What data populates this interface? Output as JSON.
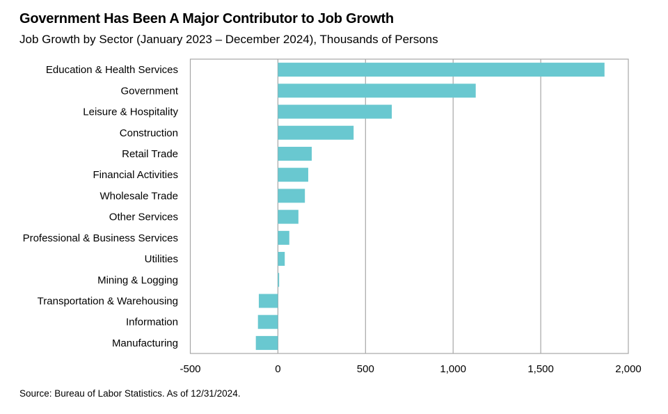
{
  "chart_data": {
    "type": "bar",
    "orientation": "horizontal",
    "title": "Government Has Been A Major Contributor to Job Growth",
    "subtitle": "Job Growth by Sector (January 2023 – December 2024), Thousands of Persons",
    "categories": [
      "Education & Health Services",
      "Government",
      "Leisure & Hospitality",
      "Construction",
      "Retail Trade",
      "Financial Activities",
      "Wholesale Trade",
      "Other Services",
      "Professional & Business Services",
      "Utilities",
      "Mining & Logging",
      "Transportation & Warehousing",
      "Information",
      "Manufacturing"
    ],
    "values": [
      1864,
      1129,
      650,
      432,
      193,
      173,
      154,
      117,
      65,
      39,
      7,
      -109,
      -114,
      -126
    ],
    "xlim": [
      -500,
      2000
    ],
    "xticks": [
      -500,
      0,
      500,
      1000,
      1500,
      2000
    ],
    "xtick_labels": [
      "-500",
      "0",
      "500",
      "1,000",
      "1,500",
      "2,000"
    ],
    "grid": "vertical",
    "legend": "none",
    "bar_color": "#69c8d0",
    "grid_color": "#a6a6a6"
  },
  "source": "Source: Bureau of Labor Statistics. As of 12/31/2024."
}
